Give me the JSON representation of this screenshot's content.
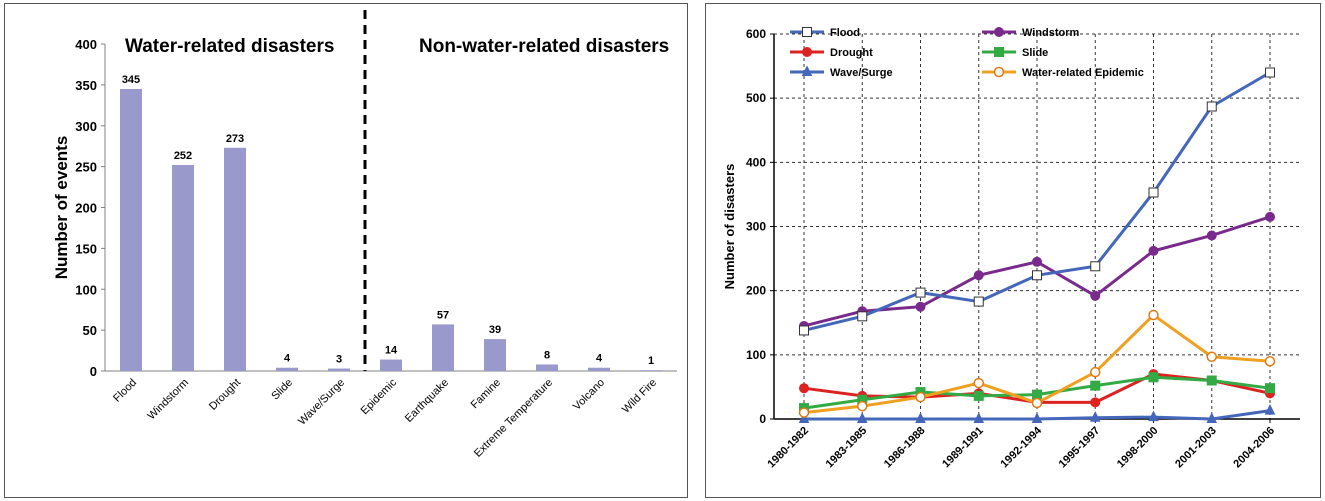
{
  "chart_data": [
    {
      "type": "bar",
      "ylabel": "Number of events",
      "xlabel": "",
      "ylim": [
        0,
        400
      ],
      "yticks": [
        0,
        50,
        100,
        150,
        200,
        250,
        300,
        350,
        400
      ],
      "categories": [
        "Flood",
        "Windstorm",
        "Drought",
        "Slide",
        "Wave/Surge",
        "Epidemic",
        "Earthquake",
        "Famine",
        "Extreme Temperature",
        "Volcano",
        "Wild Fire"
      ],
      "values": [
        345,
        252,
        273,
        4,
        3,
        14,
        57,
        39,
        8,
        4,
        1
      ],
      "data_labels": [
        "345",
        "252",
        "273",
        "4",
        "3",
        "14",
        "57",
        "39",
        "8",
        "4",
        "1"
      ],
      "group_labels": [
        "Water-related disasters",
        "Non-water-related disasters"
      ],
      "divider_after_category": "Wave/Surge",
      "bar_color": "#9999cc",
      "grid": false
    },
    {
      "type": "line",
      "ylabel": "Number of disasters",
      "xlabel": "",
      "ylim": [
        0,
        600
      ],
      "yticks": [
        0,
        100,
        200,
        300,
        400,
        500,
        600
      ],
      "categories": [
        "1980-1982",
        "1983-1985",
        "1986-1988",
        "1989-1991",
        "1992-1994",
        "1995-1997",
        "1998-2000",
        "2001-2003",
        "2004-2006"
      ],
      "grid": true,
      "legend_placement": "top",
      "series": [
        {
          "name": "Flood",
          "color": "#4466bb",
          "marker": "square-open",
          "values": [
            138,
            160,
            197,
            183,
            224,
            238,
            353,
            487,
            540
          ]
        },
        {
          "name": "Windstorm",
          "color": "#7a2a8c",
          "marker": "circle",
          "values": [
            145,
            168,
            175,
            224,
            245,
            192,
            262,
            286,
            315
          ]
        },
        {
          "name": "Drought",
          "color": "#dd2222",
          "marker": "circle",
          "values": [
            48,
            36,
            34,
            40,
            26,
            26,
            70,
            60,
            40
          ]
        },
        {
          "name": "Slide",
          "color": "#33aa44",
          "marker": "square",
          "values": [
            17,
            30,
            42,
            36,
            38,
            52,
            65,
            60,
            48
          ]
        },
        {
          "name": "Wave/Surge",
          "color": "#4466bb",
          "marker": "triangle",
          "values": [
            0,
            0,
            0,
            0,
            0,
            2,
            3,
            0,
            13
          ]
        },
        {
          "name": "Water-related Epidemic",
          "color": "#f0a020",
          "marker": "circle-open",
          "values": [
            10,
            20,
            34,
            56,
            25,
            73,
            162,
            97,
            90
          ]
        }
      ]
    }
  ]
}
